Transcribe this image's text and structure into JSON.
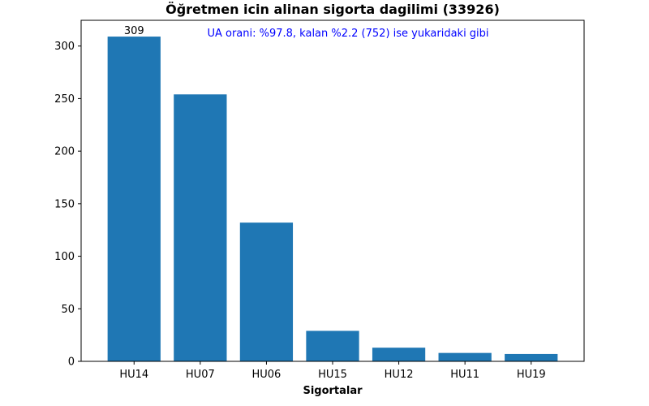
{
  "chart_data": {
    "type": "bar",
    "title": "Öğretmen icin alinan sigorta dagilimi (33926)",
    "annotation": "UA orani: %97.8, kalan %2.2 (752) ise yukaridaki gibi",
    "xlabel": "Sigortalar",
    "ylabel": "",
    "categories": [
      "HU14",
      "HU07",
      "HU06",
      "HU15",
      "HU12",
      "HU11",
      "HU19"
    ],
    "values": [
      309,
      254,
      132,
      29,
      13,
      8,
      7
    ],
    "data_labels": [
      {
        "category": "HU14",
        "text": "309"
      }
    ],
    "ylim": [
      0,
      324.5
    ],
    "yticks": [
      0,
      50,
      100,
      150,
      200,
      250,
      300
    ],
    "grid": false,
    "colors": {
      "bar": "#1f77b4",
      "annotation": "#0000ff",
      "axis": "#000000"
    }
  }
}
